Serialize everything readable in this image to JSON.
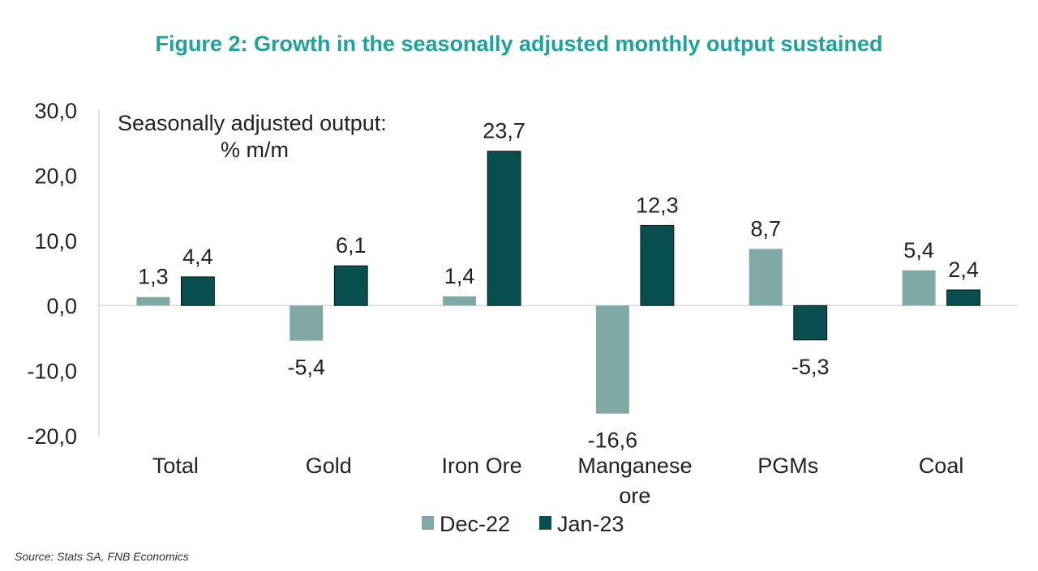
{
  "chart_data": {
    "type": "bar",
    "title": "Figure 2: Growth in the seasonally adjusted monthly output sustained",
    "annotation": [
      "Seasonally adjusted output:",
      "% m/m"
    ],
    "categories": [
      [
        "Total"
      ],
      [
        "Gold"
      ],
      [
        "Iron Ore"
      ],
      [
        "Manganese",
        "ore"
      ],
      [
        "PGMs"
      ],
      [
        "Coal"
      ]
    ],
    "series": [
      {
        "name": "Dec-22",
        "color": "#80A8A5",
        "values": [
          1.3,
          -5.4,
          1.4,
          -16.6,
          8.7,
          5.4
        ],
        "labels": [
          "1,3",
          "-5,4",
          "1,4",
          "-16,6",
          "8,7",
          "5,4"
        ]
      },
      {
        "name": "Jan-23",
        "color": "#0A4F4F",
        "values": [
          4.4,
          6.1,
          23.7,
          12.3,
          -5.3,
          2.4
        ],
        "labels": [
          "4,4",
          "6,1",
          "23,7",
          "12,3",
          "-5,3",
          "2,4"
        ]
      }
    ],
    "ylim": [
      -20,
      30
    ],
    "yticks": [
      30,
      20,
      10,
      0,
      -10,
      -20
    ],
    "ytick_labels": [
      "30,0",
      "20,0",
      "10,0",
      "0,0",
      "-10,0",
      "-20,0"
    ],
    "legend_position": "bottom-center",
    "source": "Source: Stats SA, FNB Economics",
    "title_color": "#1BA39C"
  }
}
